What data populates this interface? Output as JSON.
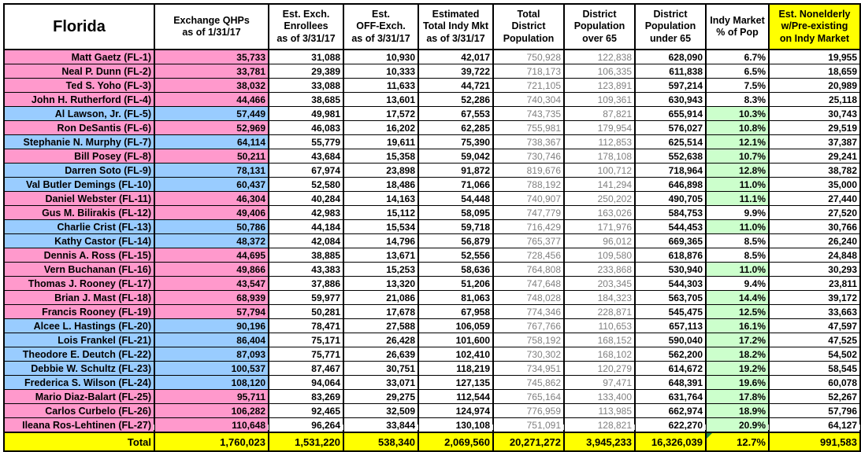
{
  "table": {
    "headers": [
      "Florida",
      "Exchange QHPs\nas of 1/31/17",
      "Est. Exch.\nEnrollees\nas of 3/31/17",
      "Est.\nOFF-Exch.\nas of 3/31/17",
      "Estimated\nTotal Indy Mkt\nas of 3/31/17",
      "Total\nDistrict\nPopulation",
      "District\nPopulation\nover 65",
      "District\nPopulation\nunder 65",
      "Indy Market\n% of Pop",
      "Est. Nonelderly\nw/Pre-existing\non Indy Market"
    ],
    "colors": {
      "pink_row": "#ff99cc",
      "blue_row": "#99ccff",
      "green_highlight": "#ccffcc",
      "total_yellow": "#ffff00",
      "header_yellow": "#ffff00",
      "muted_text": "#808080"
    },
    "rows": [
      {
        "name": "Matt Gaetz (FL-1)",
        "color": "pink",
        "qhp": "35,733",
        "enrollees": "31,088",
        "off_exch": "10,930",
        "indy_mkt": "42,017",
        "pop": "750,928",
        "over65": "122,838",
        "under65": "628,090",
        "pct": "6.7%",
        "pct_green": false,
        "nonelderly": "19,955"
      },
      {
        "name": "Neal P. Dunn (FL-2)",
        "color": "pink",
        "qhp": "33,781",
        "enrollees": "29,389",
        "off_exch": "10,333",
        "indy_mkt": "39,722",
        "pop": "718,173",
        "over65": "106,335",
        "under65": "611,838",
        "pct": "6.5%",
        "pct_green": false,
        "nonelderly": "18,659"
      },
      {
        "name": "Ted S. Yoho (FL-3)",
        "color": "pink",
        "qhp": "38,032",
        "enrollees": "33,088",
        "off_exch": "11,633",
        "indy_mkt": "44,721",
        "pop": "721,105",
        "over65": "123,891",
        "under65": "597,214",
        "pct": "7.5%",
        "pct_green": false,
        "nonelderly": "20,989"
      },
      {
        "name": "John H. Rutherford (FL-4)",
        "color": "pink",
        "qhp": "44,466",
        "enrollees": "38,685",
        "off_exch": "13,601",
        "indy_mkt": "52,286",
        "pop": "740,304",
        "over65": "109,361",
        "under65": "630,943",
        "pct": "8.3%",
        "pct_green": false,
        "nonelderly": "25,118"
      },
      {
        "name": "Al Lawson, Jr. (FL-5)",
        "color": "blue",
        "qhp": "57,449",
        "enrollees": "49,981",
        "off_exch": "17,572",
        "indy_mkt": "67,553",
        "pop": "743,735",
        "over65": "87,821",
        "under65": "655,914",
        "pct": "10.3%",
        "pct_green": true,
        "nonelderly": "30,743"
      },
      {
        "name": "Ron DeSantis (FL-6)",
        "color": "pink",
        "qhp": "52,969",
        "enrollees": "46,083",
        "off_exch": "16,202",
        "indy_mkt": "62,285",
        "pop": "755,981",
        "over65": "179,954",
        "under65": "576,027",
        "pct": "10.8%",
        "pct_green": true,
        "nonelderly": "29,519"
      },
      {
        "name": "Stephanie N. Murphy (FL-7)",
        "color": "blue",
        "qhp": "64,114",
        "enrollees": "55,779",
        "off_exch": "19,611",
        "indy_mkt": "75,390",
        "pop": "738,367",
        "over65": "112,853",
        "under65": "625,514",
        "pct": "12.1%",
        "pct_green": true,
        "nonelderly": "37,387"
      },
      {
        "name": "Bill Posey (FL-8)",
        "color": "pink",
        "qhp": "50,211",
        "enrollees": "43,684",
        "off_exch": "15,358",
        "indy_mkt": "59,042",
        "pop": "730,746",
        "over65": "178,108",
        "under65": "552,638",
        "pct": "10.7%",
        "pct_green": true,
        "nonelderly": "29,241"
      },
      {
        "name": "Darren Soto (FL-9)",
        "color": "blue",
        "qhp": "78,131",
        "enrollees": "67,974",
        "off_exch": "23,898",
        "indy_mkt": "91,872",
        "pop": "819,676",
        "over65": "100,712",
        "under65": "718,964",
        "pct": "12.8%",
        "pct_green": true,
        "nonelderly": "38,782"
      },
      {
        "name": "Val Butler Demings (FL-10)",
        "color": "blue",
        "qhp": "60,437",
        "enrollees": "52,580",
        "off_exch": "18,486",
        "indy_mkt": "71,066",
        "pop": "788,192",
        "over65": "141,294",
        "under65": "646,898",
        "pct": "11.0%",
        "pct_green": true,
        "nonelderly": "35,000"
      },
      {
        "name": "Daniel Webster (FL-11)",
        "color": "pink",
        "qhp": "46,304",
        "enrollees": "40,284",
        "off_exch": "14,163",
        "indy_mkt": "54,448",
        "pop": "740,907",
        "over65": "250,202",
        "under65": "490,705",
        "pct": "11.1%",
        "pct_green": true,
        "nonelderly": "27,440"
      },
      {
        "name": "Gus M. Bilirakis (FL-12)",
        "color": "pink",
        "qhp": "49,406",
        "enrollees": "42,983",
        "off_exch": "15,112",
        "indy_mkt": "58,095",
        "pop": "747,779",
        "over65": "163,026",
        "under65": "584,753",
        "pct": "9.9%",
        "pct_green": false,
        "nonelderly": "27,520"
      },
      {
        "name": "Charlie Crist (FL-13)",
        "color": "blue",
        "qhp": "50,786",
        "enrollees": "44,184",
        "off_exch": "15,534",
        "indy_mkt": "59,718",
        "pop": "716,429",
        "over65": "171,976",
        "under65": "544,453",
        "pct": "11.0%",
        "pct_green": true,
        "nonelderly": "30,766"
      },
      {
        "name": "Kathy Castor (FL-14)",
        "color": "blue",
        "qhp": "48,372",
        "enrollees": "42,084",
        "off_exch": "14,796",
        "indy_mkt": "56,879",
        "pop": "765,377",
        "over65": "96,012",
        "under65": "669,365",
        "pct": "8.5%",
        "pct_green": false,
        "nonelderly": "26,240"
      },
      {
        "name": "Dennis A. Ross (FL-15)",
        "color": "pink",
        "qhp": "44,695",
        "enrollees": "38,885",
        "off_exch": "13,671",
        "indy_mkt": "52,556",
        "pop": "728,456",
        "over65": "109,580",
        "under65": "618,876",
        "pct": "8.5%",
        "pct_green": false,
        "nonelderly": "24,848"
      },
      {
        "name": "Vern Buchanan (FL-16)",
        "color": "pink",
        "qhp": "49,866",
        "enrollees": "43,383",
        "off_exch": "15,253",
        "indy_mkt": "58,636",
        "pop": "764,808",
        "over65": "233,868",
        "under65": "530,940",
        "pct": "11.0%",
        "pct_green": true,
        "nonelderly": "30,293"
      },
      {
        "name": "Thomas J. Rooney (FL-17)",
        "color": "pink",
        "qhp": "43,547",
        "enrollees": "37,886",
        "off_exch": "13,320",
        "indy_mkt": "51,206",
        "pop": "747,648",
        "over65": "203,345",
        "under65": "544,303",
        "pct": "9.4%",
        "pct_green": false,
        "nonelderly": "23,811"
      },
      {
        "name": "Brian J. Mast (FL-18)",
        "color": "pink",
        "qhp": "68,939",
        "enrollees": "59,977",
        "off_exch": "21,086",
        "indy_mkt": "81,063",
        "pop": "748,028",
        "over65": "184,323",
        "under65": "563,705",
        "pct": "14.4%",
        "pct_green": true,
        "nonelderly": "39,172"
      },
      {
        "name": "Francis Rooney (FL-19)",
        "color": "pink",
        "qhp": "57,794",
        "enrollees": "50,281",
        "off_exch": "17,678",
        "indy_mkt": "67,958",
        "pop": "774,346",
        "over65": "228,871",
        "under65": "545,475",
        "pct": "12.5%",
        "pct_green": true,
        "nonelderly": "33,663"
      },
      {
        "name": "Alcee L. Hastings (FL-20)",
        "color": "blue",
        "qhp": "90,196",
        "enrollees": "78,471",
        "off_exch": "27,588",
        "indy_mkt": "106,059",
        "pop": "767,766",
        "over65": "110,653",
        "under65": "657,113",
        "pct": "16.1%",
        "pct_green": true,
        "nonelderly": "47,597"
      },
      {
        "name": "Lois Frankel (FL-21)",
        "color": "blue",
        "qhp": "86,404",
        "enrollees": "75,171",
        "off_exch": "26,428",
        "indy_mkt": "101,600",
        "pop": "758,192",
        "over65": "168,152",
        "under65": "590,040",
        "pct": "17.2%",
        "pct_green": true,
        "nonelderly": "47,525"
      },
      {
        "name": "Theodore E. Deutch (FL-22)",
        "color": "blue",
        "qhp": "87,093",
        "enrollees": "75,771",
        "off_exch": "26,639",
        "indy_mkt": "102,410",
        "pop": "730,302",
        "over65": "168,102",
        "under65": "562,200",
        "pct": "18.2%",
        "pct_green": true,
        "nonelderly": "54,502"
      },
      {
        "name": "Debbie W. Schultz (FL-23)",
        "color": "blue",
        "qhp": "100,537",
        "enrollees": "87,467",
        "off_exch": "30,751",
        "indy_mkt": "118,219",
        "pop": "734,951",
        "over65": "120,279",
        "under65": "614,672",
        "pct": "19.2%",
        "pct_green": true,
        "nonelderly": "58,545"
      },
      {
        "name": "Frederica S. Wilson (FL-24)",
        "color": "blue",
        "qhp": "108,120",
        "enrollees": "94,064",
        "off_exch": "33,071",
        "indy_mkt": "127,135",
        "pop": "745,862",
        "over65": "97,471",
        "under65": "648,391",
        "pct": "19.6%",
        "pct_green": true,
        "nonelderly": "60,078"
      },
      {
        "name": "Mario Diaz-Balart (FL-25)",
        "color": "pink",
        "qhp": "95,711",
        "enrollees": "83,269",
        "off_exch": "29,275",
        "indy_mkt": "112,544",
        "pop": "765,164",
        "over65": "133,400",
        "under65": "631,764",
        "pct": "17.8%",
        "pct_green": true,
        "nonelderly": "52,267"
      },
      {
        "name": "Carlos Curbelo (FL-26)",
        "color": "pink",
        "qhp": "106,282",
        "enrollees": "92,465",
        "off_exch": "32,509",
        "indy_mkt": "124,974",
        "pop": "776,959",
        "over65": "113,985",
        "under65": "662,974",
        "pct": "18.9%",
        "pct_green": true,
        "nonelderly": "57,796"
      },
      {
        "name": "Ileana Ros-Lehtinen (FL-27)",
        "color": "pink",
        "qhp": "110,648",
        "enrollees": "96,264",
        "off_exch": "33,844",
        "indy_mkt": "130,108",
        "pop": "751,091",
        "over65": "128,821",
        "under65": "622,270",
        "pct": "20.9%",
        "pct_green": true,
        "nonelderly": "64,127"
      }
    ],
    "total": {
      "label": "Total",
      "qhp": "1,760,023",
      "enrollees": "1,531,220",
      "off_exch": "538,340",
      "indy_mkt": "2,069,560",
      "pop": "20,271,272",
      "over65": "3,945,233",
      "under65": "16,326,039",
      "pct": "12.7%",
      "nonelderly": "991,583"
    }
  }
}
